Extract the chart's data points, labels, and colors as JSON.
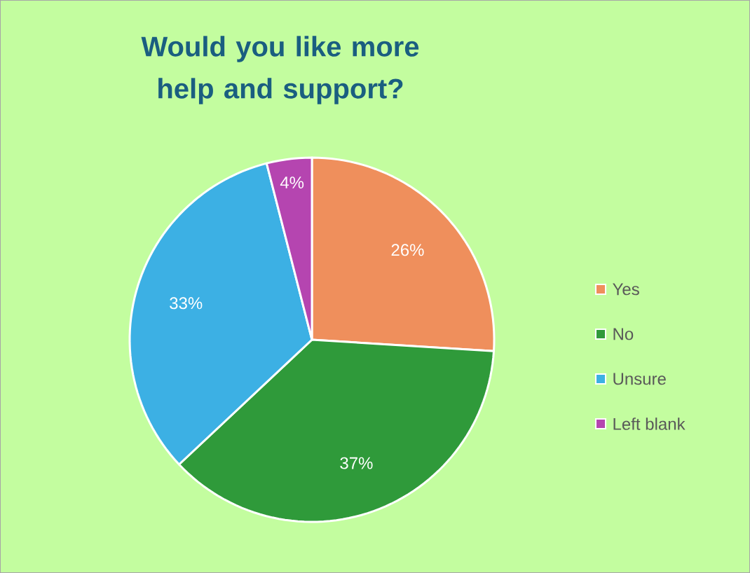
{
  "chart_data": {
    "type": "pie",
    "title": "Would you like more help and support?",
    "categories": [
      "Yes",
      "No",
      "Unsure",
      "Left blank"
    ],
    "values": [
      26,
      37,
      33,
      4
    ],
    "value_labels": [
      "26%",
      "37%",
      "33%",
      "4%"
    ],
    "colors": [
      "#ef8f5c",
      "#2f9a3a",
      "#3cb0e4",
      "#b545b0"
    ],
    "legend": "right"
  }
}
